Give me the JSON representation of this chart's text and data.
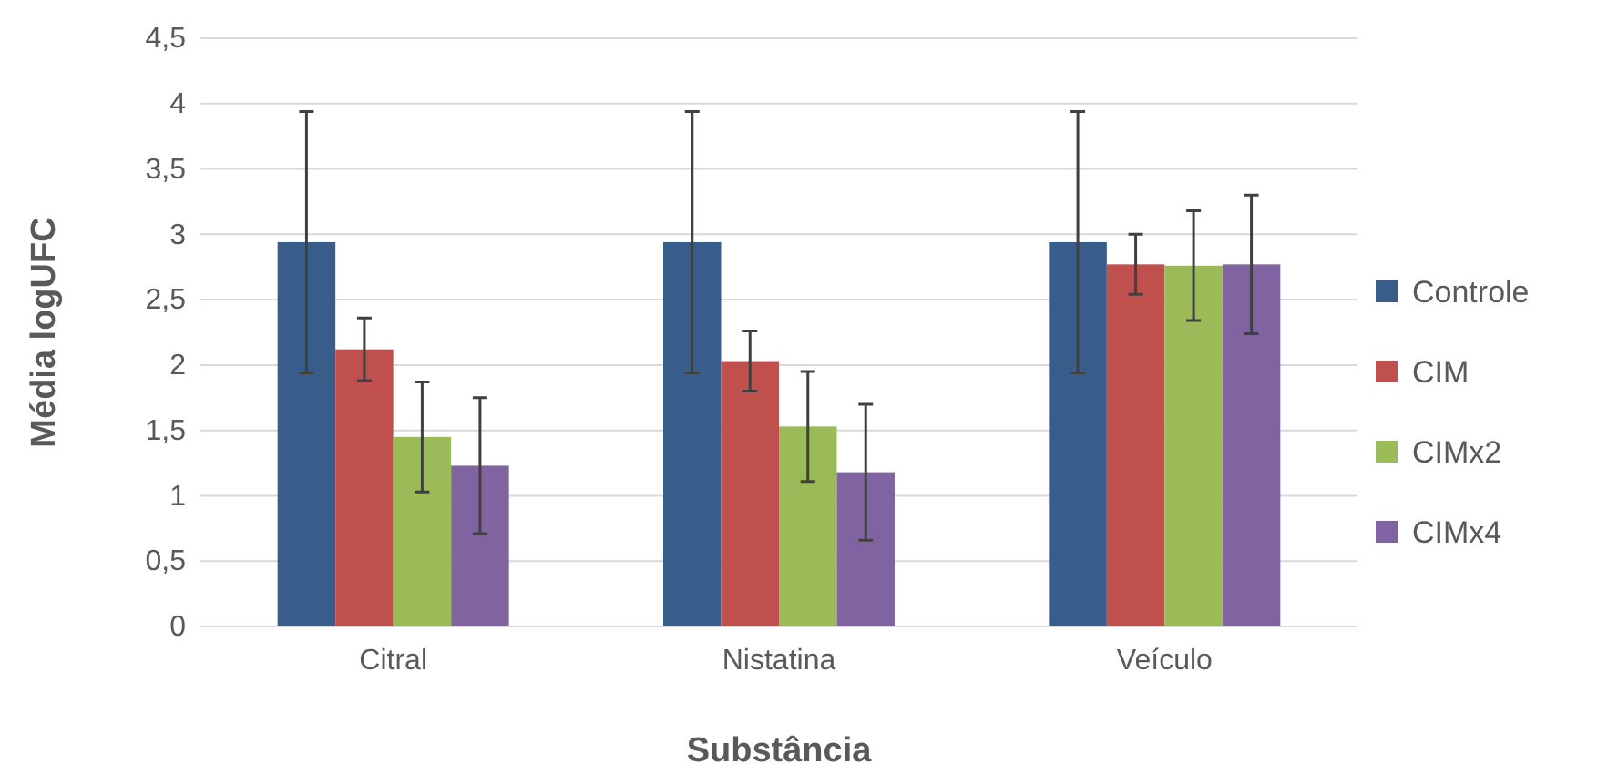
{
  "chart_data": {
    "type": "bar",
    "xlabel": "Substância",
    "ylabel": "Média logUFC",
    "categories": [
      "Citral",
      "Nistatina",
      "Veículo"
    ],
    "series": [
      {
        "name": "Controle",
        "color": "#385d8a",
        "values": [
          2.94,
          2.94,
          2.94
        ],
        "errors": [
          1.0,
          1.0,
          1.0
        ]
      },
      {
        "name": "CIM",
        "color": "#c0504d",
        "values": [
          2.12,
          2.03,
          2.77
        ],
        "errors": [
          0.24,
          0.23,
          0.23
        ]
      },
      {
        "name": "CIMx2",
        "color": "#9bbb59",
        "values": [
          1.45,
          1.53,
          2.76
        ],
        "errors": [
          0.42,
          0.42,
          0.42
        ]
      },
      {
        "name": "CIMx4",
        "color": "#8064a2",
        "values": [
          1.23,
          1.18,
          2.77
        ],
        "errors": [
          0.52,
          0.52,
          0.53
        ]
      }
    ],
    "ylim": [
      0,
      4.5
    ],
    "yticks": [
      {
        "value": 0,
        "label": "0"
      },
      {
        "value": 0.5,
        "label": "0,5"
      },
      {
        "value": 1,
        "label": "1"
      },
      {
        "value": 1.5,
        "label": "1,5"
      },
      {
        "value": 2,
        "label": "2"
      },
      {
        "value": 2.5,
        "label": "2,5"
      },
      {
        "value": 3,
        "label": "3"
      },
      {
        "value": 3.5,
        "label": "3,5"
      },
      {
        "value": 4,
        "label": "4"
      },
      {
        "value": 4.5,
        "label": "4,5"
      }
    ],
    "grid": "y",
    "legend": "right"
  }
}
